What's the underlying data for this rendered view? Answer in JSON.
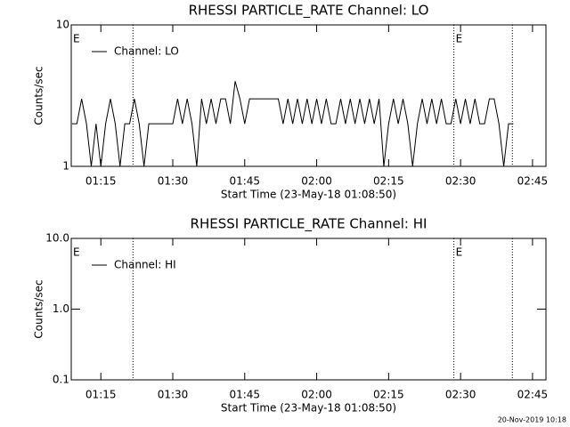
{
  "chart_data": [
    {
      "type": "line",
      "title": "RHESSI PARTICLE_RATE Channel: LO",
      "xlabel": "Start Time (23-May-18 01:08:50)",
      "ylabel": "Counts/sec",
      "x": [
        69,
        70,
        71,
        72,
        73,
        74,
        75,
        76,
        77,
        78,
        79,
        80,
        81,
        82,
        83,
        84,
        85,
        86,
        87,
        88,
        89,
        90,
        91,
        92,
        93,
        94,
        95,
        96,
        97,
        98,
        99,
        100,
        101,
        102,
        103,
        104,
        105,
        106,
        107,
        108,
        109,
        110,
        111,
        112,
        113,
        114,
        115,
        116,
        117,
        118,
        119,
        120,
        121,
        122,
        123,
        124,
        125,
        126,
        127,
        128,
        129,
        130,
        131,
        132,
        133,
        134,
        135,
        136,
        137,
        138,
        139,
        140,
        141,
        142,
        143,
        144,
        145,
        146,
        147,
        148,
        149,
        150,
        151,
        152,
        153,
        154,
        155,
        156,
        157,
        158,
        159,
        160,
        161
      ],
      "series": [
        {
          "name": "Channel: LO",
          "color": "#000000",
          "values": [
            2,
            2,
            3,
            2,
            1,
            2,
            1,
            2,
            3,
            2,
            1,
            2,
            2,
            3,
            2,
            1,
            2,
            2,
            2,
            2,
            2,
            2,
            3,
            2,
            3,
            2,
            1,
            3,
            2,
            3,
            2,
            3,
            3,
            2,
            4,
            3,
            2,
            3,
            3,
            3,
            3,
            3,
            3,
            3,
            2,
            3,
            2,
            3,
            2,
            3,
            2,
            3,
            2,
            3,
            2,
            2,
            3,
            2,
            3,
            2,
            3,
            2,
            3,
            2,
            3,
            1,
            2,
            3,
            2,
            3,
            2,
            1,
            2,
            3,
            2,
            3,
            2,
            3,
            2,
            2,
            3,
            2,
            3,
            2,
            3,
            2,
            2,
            3,
            3,
            2,
            1,
            2,
            2
          ]
        }
      ],
      "xlim": [
        68.83,
        167.8
      ],
      "xticks": [
        {
          "value": 75,
          "label": "01:15"
        },
        {
          "value": 90,
          "label": "01:30"
        },
        {
          "value": 105,
          "label": "01:45"
        },
        {
          "value": 120,
          "label": "02:00"
        },
        {
          "value": 135,
          "label": "02:15"
        },
        {
          "value": 150,
          "label": "02:30"
        },
        {
          "value": 165,
          "label": "02:45"
        }
      ],
      "ylim": [
        1,
        10
      ],
      "yticks": [
        1,
        10
      ],
      "log_y": true,
      "vlines": [
        81.7,
        148.6,
        160.8
      ],
      "annotations": [
        {
          "text": "E",
          "x": 68.83
        },
        {
          "text": "E",
          "x": 148.6
        }
      ]
    },
    {
      "type": "line",
      "title": "RHESSI PARTICLE_RATE Channel: HI",
      "xlabel": "Start Time (23-May-18 01:08:50)",
      "ylabel": "Counts/sec",
      "x": [],
      "series": [
        {
          "name": "Channel: HI",
          "color": "#000000",
          "values": []
        }
      ],
      "xlim": [
        68.83,
        167.8
      ],
      "xticks": [
        {
          "value": 75,
          "label": "01:15"
        },
        {
          "value": 90,
          "label": "01:30"
        },
        {
          "value": 105,
          "label": "01:45"
        },
        {
          "value": 120,
          "label": "02:00"
        },
        {
          "value": 135,
          "label": "02:15"
        },
        {
          "value": 150,
          "label": "02:30"
        },
        {
          "value": 165,
          "label": "02:45"
        }
      ],
      "ylim": [
        0.1,
        10
      ],
      "yticks": [
        0.1,
        {
          "value": 1,
          "label": "1.0"
        },
        {
          "value": 10,
          "label": "10.0"
        }
      ],
      "log_y": true,
      "vlines": [
        81.7,
        148.6,
        160.8
      ],
      "annotations": [
        {
          "text": "E",
          "x": 68.83
        },
        {
          "text": "E",
          "x": 148.6
        }
      ]
    }
  ],
  "footer": "20-Nov-2019 10:18"
}
